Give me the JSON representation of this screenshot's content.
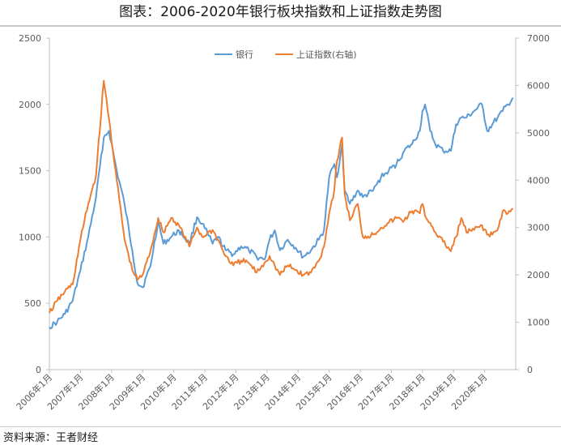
{
  "title": "图表：2006-2020年银行板块指数和上证指数走势图",
  "source": "资料来源：王者财经",
  "colors": {
    "bank": "#5b9bd5",
    "sse": "#ed7d31",
    "axis": "#bfbfbf",
    "text": "#595959"
  },
  "chart_data": {
    "type": "line",
    "grid": false,
    "legend_position": "top-center",
    "x_tick_labels": [
      "2006年1月",
      "2007年1月",
      "2008年1月",
      "2009年1月",
      "2010年1月",
      "2011年1月",
      "2012年1月",
      "2013年1月",
      "2014年1月",
      "2015年1月",
      "2016年1月",
      "2017年1月",
      "2018年1月",
      "2019年1月",
      "2020年1月"
    ],
    "y_left": {
      "range": [
        0,
        2500
      ],
      "ticks": [
        "0",
        "500",
        "1000",
        "1500",
        "2000",
        "2500"
      ]
    },
    "y_right": {
      "range": [
        0,
        7000
      ],
      "ticks": [
        "0",
        "1000",
        "2000",
        "3000",
        "4000",
        "5000",
        "6000",
        "7000"
      ]
    },
    "x_range": [
      "2006-01",
      "2020-12"
    ],
    "series": [
      {
        "name": "银行",
        "axis": "left",
        "color": "#5b9bd5",
        "x": [
          "2006-01",
          "2006-04",
          "2006-07",
          "2006-10",
          "2007-01",
          "2007-04",
          "2007-07",
          "2007-10",
          "2007-12",
          "2008-03",
          "2008-06",
          "2008-09",
          "2008-11",
          "2009-01",
          "2009-04",
          "2009-07",
          "2009-09",
          "2009-12",
          "2010-03",
          "2010-07",
          "2010-10",
          "2010-12",
          "2011-04",
          "2011-06",
          "2011-09",
          "2011-12",
          "2012-03",
          "2012-06",
          "2012-09",
          "2012-12",
          "2013-02",
          "2013-04",
          "2013-06",
          "2013-09",
          "2013-12",
          "2014-03",
          "2014-06",
          "2014-09",
          "2014-11",
          "2015-01",
          "2015-03",
          "2015-04",
          "2015-06",
          "2015-07",
          "2015-09",
          "2015-12",
          "2016-02",
          "2016-06",
          "2016-09",
          "2016-12",
          "2017-03",
          "2017-06",
          "2017-09",
          "2017-12",
          "2018-01",
          "2018-02",
          "2018-04",
          "2018-06",
          "2018-09",
          "2018-12",
          "2019-02",
          "2019-04",
          "2019-06",
          "2019-09",
          "2019-12",
          "2020-02",
          "2020-04",
          "2020-06",
          "2020-08",
          "2020-10",
          "2020-12"
        ],
        "values": [
          320,
          360,
          420,
          520,
          750,
          1000,
          1300,
          1750,
          1800,
          1500,
          1250,
          900,
          650,
          620,
          780,
          1120,
          950,
          1000,
          1050,
          950,
          1150,
          1100,
          950,
          1000,
          900,
          870,
          930,
          900,
          850,
          830,
          980,
          1050,
          900,
          980,
          920,
          850,
          900,
          980,
          1050,
          1450,
          1550,
          1450,
          1700,
          1350,
          1250,
          1350,
          1300,
          1350,
          1450,
          1500,
          1550,
          1650,
          1700,
          1800,
          1950,
          2000,
          1800,
          1700,
          1650,
          1650,
          1850,
          1900,
          1900,
          1950,
          2000,
          1800,
          1850,
          1900,
          1950,
          2000,
          2050
        ]
      },
      {
        "name": "上证指数(右轴)",
        "axis": "right",
        "color": "#ed7d31",
        "x": [
          "2006-01",
          "2006-04",
          "2006-07",
          "2006-10",
          "2007-01",
          "2007-04",
          "2007-07",
          "2007-10",
          "2007-12",
          "2008-03",
          "2008-06",
          "2008-09",
          "2008-11",
          "2009-01",
          "2009-04",
          "2009-07",
          "2009-09",
          "2009-12",
          "2010-03",
          "2010-07",
          "2010-10",
          "2010-12",
          "2011-04",
          "2011-06",
          "2011-09",
          "2011-12",
          "2012-03",
          "2012-06",
          "2012-09",
          "2012-12",
          "2013-02",
          "2013-04",
          "2013-06",
          "2013-09",
          "2013-12",
          "2014-03",
          "2014-06",
          "2014-09",
          "2014-11",
          "2015-01",
          "2015-03",
          "2015-04",
          "2015-06",
          "2015-07",
          "2015-09",
          "2015-12",
          "2016-02",
          "2016-06",
          "2016-09",
          "2016-12",
          "2017-03",
          "2017-06",
          "2017-09",
          "2017-12",
          "2018-01",
          "2018-02",
          "2018-04",
          "2018-06",
          "2018-09",
          "2018-12",
          "2019-02",
          "2019-04",
          "2019-06",
          "2019-09",
          "2019-12",
          "2020-02",
          "2020-04",
          "2020-06",
          "2020-08",
          "2020-10",
          "2020-12"
        ],
        "values": [
          1200,
          1450,
          1650,
          1800,
          2750,
          3500,
          4100,
          6100,
          5300,
          4000,
          2750,
          2100,
          1900,
          2000,
          2500,
          3200,
          2900,
          3200,
          3050,
          2600,
          3000,
          2800,
          2950,
          2750,
          2400,
          2200,
          2300,
          2250,
          2050,
          2250,
          2400,
          2200,
          2000,
          2200,
          2100,
          2000,
          2050,
          2300,
          2600,
          3300,
          3800,
          4400,
          4900,
          3700,
          3150,
          3500,
          2800,
          2850,
          3000,
          3100,
          3200,
          3150,
          3350,
          3300,
          3500,
          3250,
          3100,
          2900,
          2700,
          2500,
          2800,
          3200,
          2900,
          2950,
          3050,
          2850,
          2850,
          2950,
          3350,
          3300,
          3400
        ]
      }
    ]
  }
}
